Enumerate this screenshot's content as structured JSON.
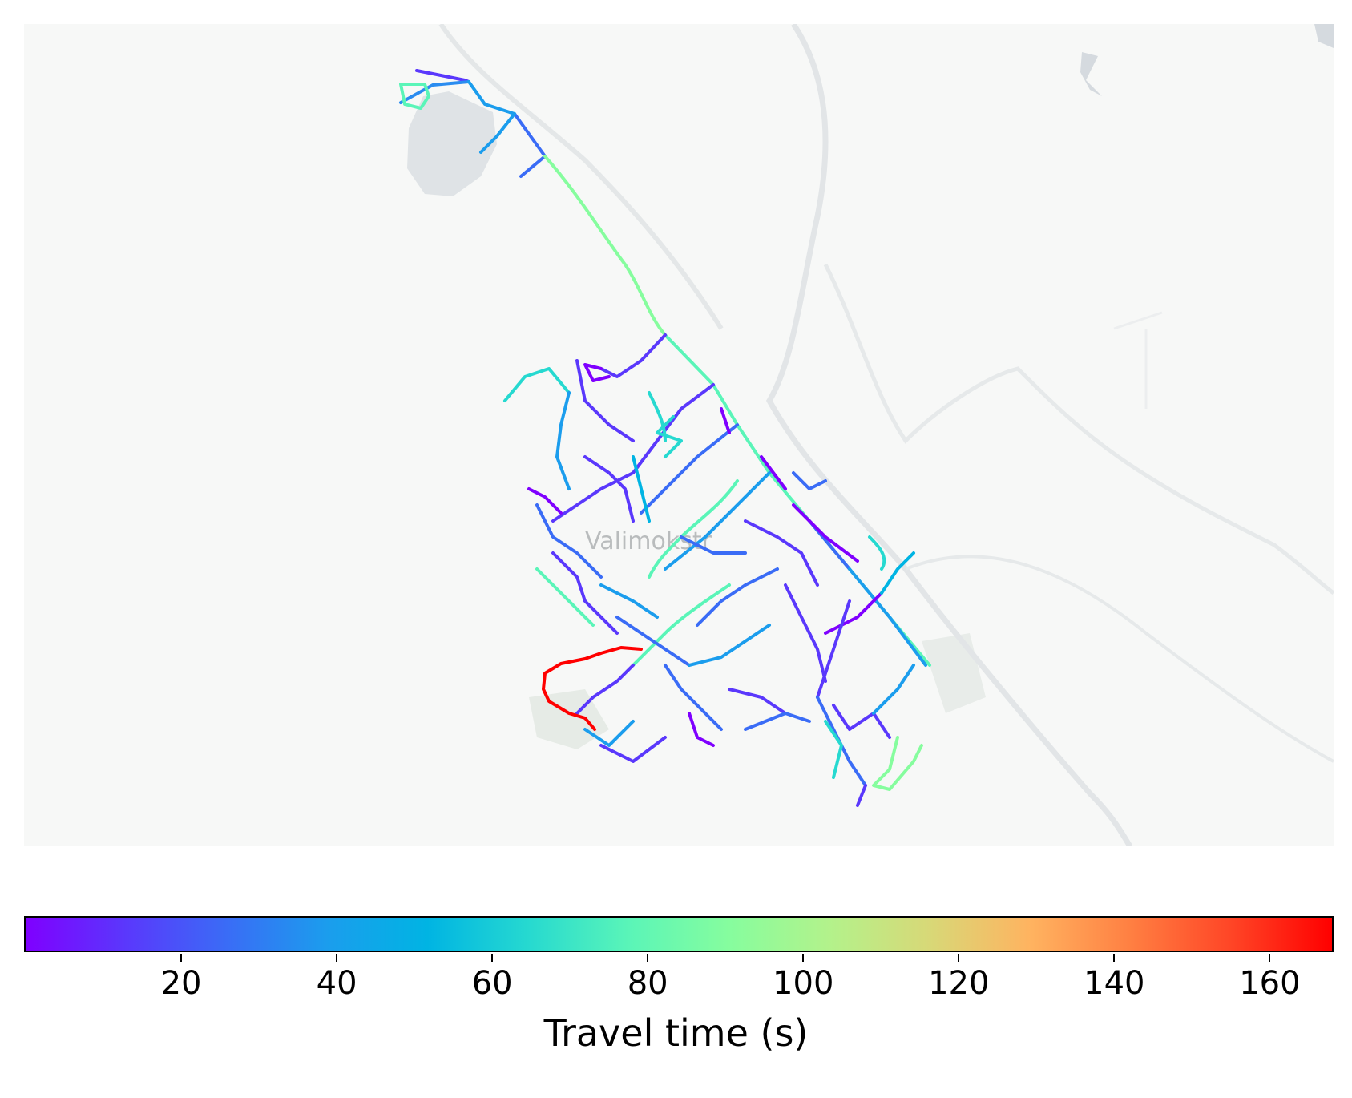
{
  "map": {
    "place_label": "Valimokstr",
    "basemap_style": "light-gray",
    "network_colormap": "rainbow"
  },
  "colorbar": {
    "label": "Travel time (s)",
    "min": 0,
    "max": 168,
    "ticks": [
      "20",
      "40",
      "60",
      "80",
      "100",
      "120",
      "140",
      "160"
    ],
    "colors": [
      "#7f00ff",
      "#5a38fc",
      "#3a6cf6",
      "#1b9ded",
      "#00b4e3",
      "#26d9d0",
      "#5af5b8",
      "#86fd9e",
      "#b3f28b",
      "#d8d877",
      "#ffb360",
      "#ff7f42",
      "#ff4526",
      "#ff0000"
    ]
  }
}
